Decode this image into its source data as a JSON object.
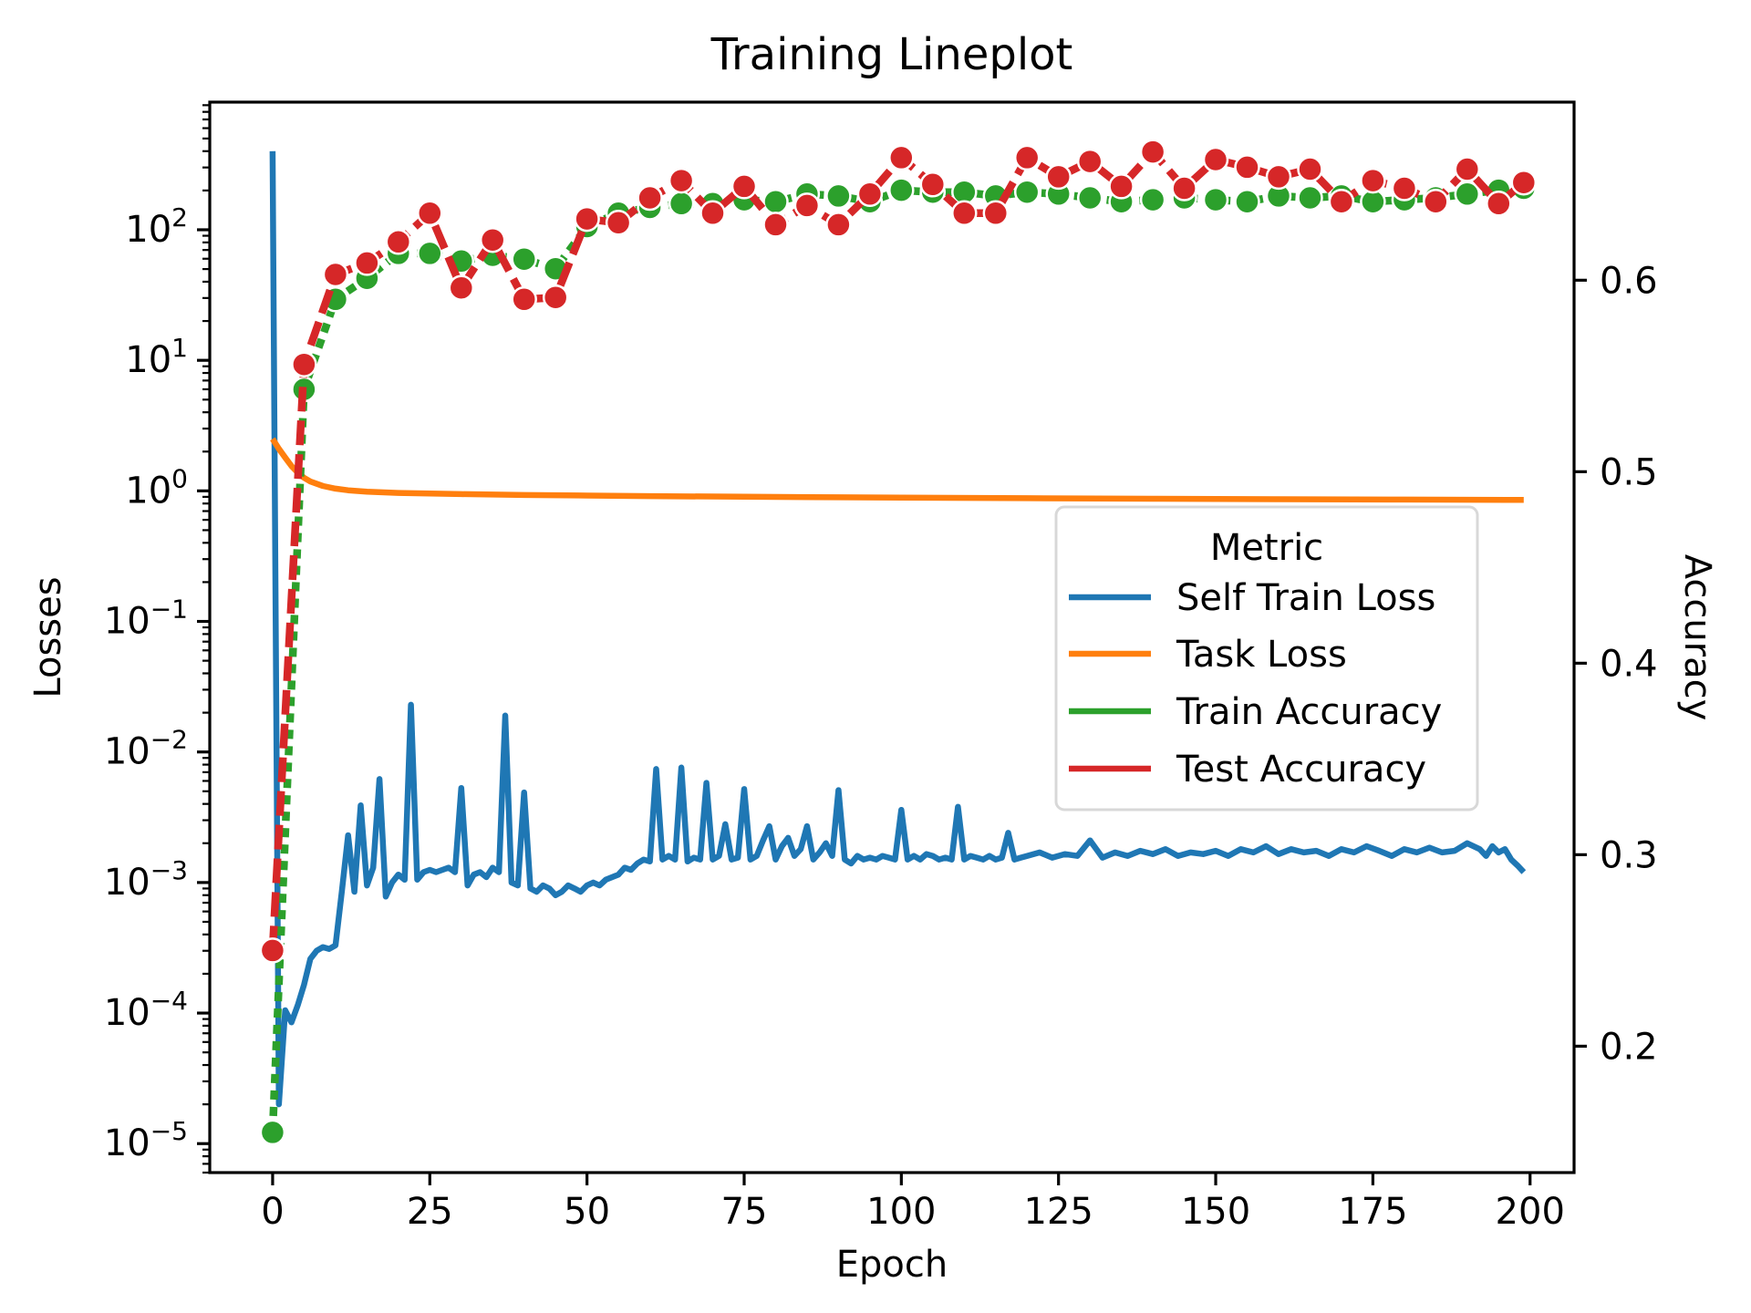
{
  "chart_data": {
    "type": "line",
    "title": "Training Lineplot",
    "xlabel": "Epoch",
    "ylabel_left": "Losses",
    "ylabel_right": "Accuracy",
    "x_ticks": [
      0,
      25,
      50,
      75,
      100,
      125,
      150,
      175,
      200
    ],
    "y_ticks_left_exponents": [
      2,
      1,
      0,
      -1,
      -2,
      -3,
      -4,
      -5
    ],
    "y_ticks_right": [
      0.6,
      0.5,
      0.4,
      0.3,
      0.2
    ],
    "xlim": [
      -10,
      207
    ],
    "ylim_left_log": [
      6e-06,
      950
    ],
    "ylim_right": [
      0.134,
      0.693
    ],
    "grid": "off",
    "legend": {
      "title": "Metric",
      "position": "center-right"
    },
    "series": [
      {
        "name": "Self Train Loss",
        "color": "#1f77b4",
        "axis": "left-log",
        "line": "solid",
        "markers": false,
        "data": [
          [
            0,
            400
          ],
          [
            1,
            2e-05
          ],
          [
            2,
            0.000105
          ],
          [
            3,
            8.5e-05
          ],
          [
            4,
            0.000115
          ],
          [
            5,
            0.000165
          ],
          [
            6,
            0.00026
          ],
          [
            7,
            0.0003
          ],
          [
            8,
            0.00032
          ],
          [
            9,
            0.00031
          ],
          [
            10,
            0.00033
          ],
          [
            11,
            0.00085
          ],
          [
            12,
            0.0023
          ],
          [
            13,
            0.00085
          ],
          [
            14,
            0.0039
          ],
          [
            15,
            0.00095
          ],
          [
            16,
            0.0013
          ],
          [
            17,
            0.0062
          ],
          [
            18,
            0.00078
          ],
          [
            19,
            0.001
          ],
          [
            20,
            0.00115
          ],
          [
            21,
            0.00105
          ],
          [
            22,
            0.023
          ],
          [
            23,
            0.00105
          ],
          [
            24,
            0.0012
          ],
          [
            25,
            0.00125
          ],
          [
            26,
            0.0012
          ],
          [
            27,
            0.00125
          ],
          [
            28,
            0.0013
          ],
          [
            29,
            0.0012
          ],
          [
            30,
            0.0053
          ],
          [
            31,
            0.00095
          ],
          [
            32,
            0.00115
          ],
          [
            33,
            0.0012
          ],
          [
            34,
            0.0011
          ],
          [
            35,
            0.0013
          ],
          [
            36,
            0.0012
          ],
          [
            37,
            0.019
          ],
          [
            38,
            0.001
          ],
          [
            39,
            0.00095
          ],
          [
            40,
            0.0049
          ],
          [
            41,
            0.0009
          ],
          [
            42,
            0.00085
          ],
          [
            43,
            0.00095
          ],
          [
            44,
            0.0009
          ],
          [
            45,
            0.0008
          ],
          [
            46,
            0.00085
          ],
          [
            47,
            0.00095
          ],
          [
            48,
            0.0009
          ],
          [
            49,
            0.00085
          ],
          [
            50,
            0.00095
          ],
          [
            51,
            0.001
          ],
          [
            52,
            0.00095
          ],
          [
            53,
            0.00105
          ],
          [
            54,
            0.0011
          ],
          [
            55,
            0.00115
          ],
          [
            56,
            0.0013
          ],
          [
            57,
            0.00125
          ],
          [
            58,
            0.0014
          ],
          [
            59,
            0.0015
          ],
          [
            60,
            0.00145
          ],
          [
            61,
            0.0074
          ],
          [
            62,
            0.0015
          ],
          [
            63,
            0.0016
          ],
          [
            64,
            0.0015
          ],
          [
            65,
            0.0076
          ],
          [
            66,
            0.00145
          ],
          [
            67,
            0.00155
          ],
          [
            68,
            0.0015
          ],
          [
            69,
            0.0058
          ],
          [
            70,
            0.0015
          ],
          [
            71,
            0.0016
          ],
          [
            72,
            0.0028
          ],
          [
            73,
            0.0015
          ],
          [
            74,
            0.00155
          ],
          [
            75,
            0.0052
          ],
          [
            76,
            0.0015
          ],
          [
            77,
            0.0016
          ],
          [
            78,
            0.0021
          ],
          [
            79,
            0.0027
          ],
          [
            80,
            0.0015
          ],
          [
            81,
            0.0019
          ],
          [
            82,
            0.0022
          ],
          [
            83,
            0.0016
          ],
          [
            84,
            0.0018
          ],
          [
            85,
            0.0027
          ],
          [
            86,
            0.0015
          ],
          [
            87,
            0.0017
          ],
          [
            88,
            0.002
          ],
          [
            89,
            0.0016
          ],
          [
            90,
            0.0051
          ],
          [
            91,
            0.0015
          ],
          [
            92,
            0.0014
          ],
          [
            93,
            0.0016
          ],
          [
            94,
            0.0015
          ],
          [
            95,
            0.00155
          ],
          [
            96,
            0.0015
          ],
          [
            97,
            0.0016
          ],
          [
            98,
            0.00155
          ],
          [
            99,
            0.0015
          ],
          [
            100,
            0.0036
          ],
          [
            101,
            0.0015
          ],
          [
            102,
            0.0016
          ],
          [
            103,
            0.0015
          ],
          [
            104,
            0.00165
          ],
          [
            105,
            0.0016
          ],
          [
            106,
            0.0015
          ],
          [
            107,
            0.00155
          ],
          [
            108,
            0.0015
          ],
          [
            109,
            0.0038
          ],
          [
            110,
            0.0015
          ],
          [
            111,
            0.0016
          ],
          [
            112,
            0.00155
          ],
          [
            113,
            0.0015
          ],
          [
            114,
            0.0016
          ],
          [
            115,
            0.0015
          ],
          [
            116,
            0.00155
          ],
          [
            117,
            0.0024
          ],
          [
            118,
            0.0015
          ],
          [
            119,
            0.00155
          ],
          [
            120,
            0.0016
          ],
          [
            122,
            0.0017
          ],
          [
            124,
            0.00155
          ],
          [
            126,
            0.00165
          ],
          [
            128,
            0.0016
          ],
          [
            130,
            0.0021
          ],
          [
            132,
            0.00155
          ],
          [
            134,
            0.0017
          ],
          [
            136,
            0.0016
          ],
          [
            138,
            0.00175
          ],
          [
            140,
            0.00165
          ],
          [
            142,
            0.0018
          ],
          [
            144,
            0.0016
          ],
          [
            146,
            0.0017
          ],
          [
            148,
            0.00165
          ],
          [
            150,
            0.00175
          ],
          [
            152,
            0.0016
          ],
          [
            154,
            0.0018
          ],
          [
            156,
            0.0017
          ],
          [
            158,
            0.0019
          ],
          [
            160,
            0.00165
          ],
          [
            162,
            0.0018
          ],
          [
            164,
            0.0017
          ],
          [
            166,
            0.00175
          ],
          [
            168,
            0.0016
          ],
          [
            170,
            0.0018
          ],
          [
            172,
            0.0017
          ],
          [
            174,
            0.0019
          ],
          [
            176,
            0.00175
          ],
          [
            178,
            0.0016
          ],
          [
            180,
            0.0018
          ],
          [
            182,
            0.0017
          ],
          [
            184,
            0.00185
          ],
          [
            186,
            0.0017
          ],
          [
            188,
            0.00175
          ],
          [
            190,
            0.002
          ],
          [
            192,
            0.0018
          ],
          [
            193,
            0.0016
          ],
          [
            194,
            0.0019
          ],
          [
            195,
            0.0017
          ],
          [
            196,
            0.0018
          ],
          [
            197,
            0.0015
          ],
          [
            198,
            0.00135
          ],
          [
            199,
            0.0012
          ]
        ]
      },
      {
        "name": "Task Loss",
        "color": "#ff7f0e",
        "axis": "left-log",
        "line": "solid",
        "markers": false,
        "data": [
          [
            0,
            2.5
          ],
          [
            1,
            2.1
          ],
          [
            2,
            1.8
          ],
          [
            3,
            1.55
          ],
          [
            4,
            1.38
          ],
          [
            5,
            1.26
          ],
          [
            6,
            1.18
          ],
          [
            8,
            1.09
          ],
          [
            10,
            1.04
          ],
          [
            12,
            1.01
          ],
          [
            15,
            0.985
          ],
          [
            20,
            0.965
          ],
          [
            25,
            0.955
          ],
          [
            30,
            0.945
          ],
          [
            40,
            0.93
          ],
          [
            50,
            0.92
          ],
          [
            60,
            0.912
          ],
          [
            75,
            0.902
          ],
          [
            90,
            0.893
          ],
          [
            100,
            0.888
          ],
          [
            120,
            0.878
          ],
          [
            140,
            0.87
          ],
          [
            160,
            0.863
          ],
          [
            180,
            0.857
          ],
          [
            199,
            0.852
          ]
        ]
      },
      {
        "name": "Train Accuracy",
        "color": "#2ca02c",
        "axis": "right-linear",
        "line": "dashed",
        "dash": "10 8",
        "markers": true,
        "data": [
          [
            0,
            0.155
          ],
          [
            5,
            0.543
          ],
          [
            10,
            0.59
          ],
          [
            15,
            0.601
          ],
          [
            20,
            0.614
          ],
          [
            25,
            0.614
          ],
          [
            30,
            0.61
          ],
          [
            35,
            0.613
          ],
          [
            40,
            0.611
          ],
          [
            45,
            0.606
          ],
          [
            50,
            0.628
          ],
          [
            55,
            0.635
          ],
          [
            60,
            0.638
          ],
          [
            65,
            0.64
          ],
          [
            70,
            0.64
          ],
          [
            75,
            0.642
          ],
          [
            80,
            0.641
          ],
          [
            85,
            0.645
          ],
          [
            90,
            0.644
          ],
          [
            95,
            0.641
          ],
          [
            100,
            0.647
          ],
          [
            105,
            0.646
          ],
          [
            110,
            0.646
          ],
          [
            115,
            0.644
          ],
          [
            120,
            0.646
          ],
          [
            125,
            0.645
          ],
          [
            130,
            0.643
          ],
          [
            135,
            0.641
          ],
          [
            140,
            0.642
          ],
          [
            145,
            0.643
          ],
          [
            150,
            0.642
          ],
          [
            155,
            0.641
          ],
          [
            160,
            0.644
          ],
          [
            165,
            0.643
          ],
          [
            170,
            0.644
          ],
          [
            175,
            0.641
          ],
          [
            180,
            0.642
          ],
          [
            185,
            0.643
          ],
          [
            190,
            0.645
          ],
          [
            195,
            0.647
          ],
          [
            199,
            0.648
          ]
        ]
      },
      {
        "name": "Test Accuracy",
        "color": "#d62728",
        "axis": "right-linear",
        "line": "dashed",
        "dash": "27 10",
        "markers": true,
        "data": [
          [
            0,
            0.25
          ],
          [
            5,
            0.556
          ],
          [
            10,
            0.603
          ],
          [
            15,
            0.609
          ],
          [
            20,
            0.62
          ],
          [
            25,
            0.635
          ],
          [
            30,
            0.596
          ],
          [
            35,
            0.621
          ],
          [
            40,
            0.59
          ],
          [
            45,
            0.591
          ],
          [
            50,
            0.632
          ],
          [
            55,
            0.63
          ],
          [
            60,
            0.643
          ],
          [
            65,
            0.652
          ],
          [
            70,
            0.635
          ],
          [
            75,
            0.649
          ],
          [
            80,
            0.629
          ],
          [
            85,
            0.639
          ],
          [
            90,
            0.629
          ],
          [
            95,
            0.645
          ],
          [
            100,
            0.664
          ],
          [
            105,
            0.65
          ],
          [
            110,
            0.635
          ],
          [
            115,
            0.635
          ],
          [
            120,
            0.664
          ],
          [
            125,
            0.654
          ],
          [
            130,
            0.662
          ],
          [
            135,
            0.649
          ],
          [
            140,
            0.667
          ],
          [
            145,
            0.648
          ],
          [
            150,
            0.663
          ],
          [
            155,
            0.659
          ],
          [
            160,
            0.654
          ],
          [
            165,
            0.658
          ],
          [
            170,
            0.641
          ],
          [
            175,
            0.652
          ],
          [
            180,
            0.648
          ],
          [
            185,
            0.641
          ],
          [
            190,
            0.658
          ],
          [
            195,
            0.64
          ],
          [
            199,
            0.651
          ]
        ]
      }
    ]
  }
}
